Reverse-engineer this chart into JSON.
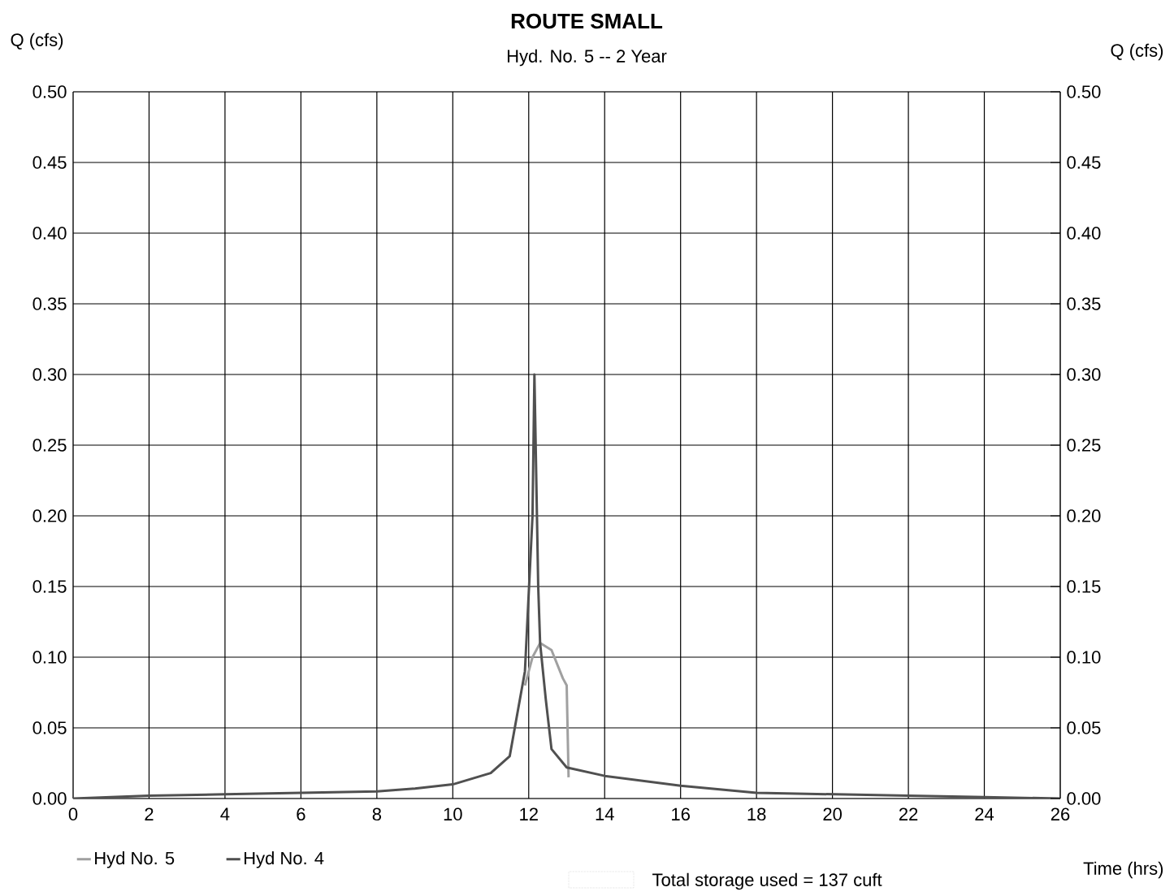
{
  "chart_data": {
    "type": "line",
    "title": "ROUTE SMALL",
    "subtitle": "Hyd. No. 5 -- 2 Year",
    "xlabel": "Time (hrs)",
    "ylabel": "Q (cfs)",
    "y2label": "Q (cfs)",
    "series": [
      {
        "name": "Hyd No. 5",
        "color": "#a0a0a0",
        "x": [
          11.9,
          12.1,
          12.3,
          12.6,
          12.9,
          13.0,
          13.05
        ],
        "values": [
          0.08,
          0.1,
          0.11,
          0.105,
          0.085,
          0.08,
          0.015
        ]
      },
      {
        "name": "Hyd No. 4",
        "color": "#505050",
        "x": [
          0,
          2,
          4,
          6,
          8,
          9,
          10,
          11,
          11.5,
          11.7,
          11.9,
          12.1,
          12.15,
          12.25,
          12.3,
          12.45,
          12.6,
          13,
          14,
          16,
          18,
          20,
          22,
          24,
          26
        ],
        "values": [
          0.0,
          0.002,
          0.003,
          0.004,
          0.005,
          0.007,
          0.01,
          0.018,
          0.03,
          0.06,
          0.09,
          0.2,
          0.3,
          0.15,
          0.11,
          0.07,
          0.035,
          0.022,
          0.016,
          0.009,
          0.004,
          0.003,
          0.002,
          0.001,
          0.0
        ]
      }
    ],
    "xlim": [
      0,
      26
    ],
    "xticks": [
      0,
      2,
      4,
      6,
      8,
      10,
      12,
      14,
      16,
      18,
      20,
      22,
      24,
      26
    ],
    "ylim": [
      0,
      0.5
    ],
    "yticks": [
      {
        "value": 0,
        "label": "0.00"
      },
      {
        "value": 0.05,
        "label": "0.05"
      },
      {
        "value": 0.1,
        "label": "0.10"
      },
      {
        "value": 0.15,
        "label": "0.15"
      },
      {
        "value": 0.2,
        "label": "0.20"
      },
      {
        "value": 0.25,
        "label": "0.25"
      },
      {
        "value": 0.3,
        "label": "0.30"
      },
      {
        "value": 0.35,
        "label": "0.35"
      },
      {
        "value": 0.4,
        "label": "0.40"
      },
      {
        "value": 0.45,
        "label": "0.45"
      },
      {
        "value": 0.5,
        "label": "0.50"
      }
    ],
    "y2lim": [
      0,
      0.5
    ],
    "y2ticks": [
      {
        "value": 0,
        "label": "0.00"
      },
      {
        "value": 0.05,
        "label": "0.05"
      },
      {
        "value": 0.1,
        "label": "0.10"
      },
      {
        "value": 0.15,
        "label": "0.15"
      },
      {
        "value": 0.2,
        "label": "0.20"
      },
      {
        "value": 0.25,
        "label": "0.25"
      },
      {
        "value": 0.3,
        "label": "0.30"
      },
      {
        "value": 0.35,
        "label": "0.35"
      },
      {
        "value": 0.4,
        "label": "0.40"
      },
      {
        "value": 0.45,
        "label": "0.45"
      },
      {
        "value": 0.5,
        "label": "0.50"
      }
    ],
    "grid": true,
    "legend": "bottom left",
    "marker": "none",
    "line_style": "solid",
    "annotations": [
      "Total storage used = 137 cuft"
    ]
  }
}
